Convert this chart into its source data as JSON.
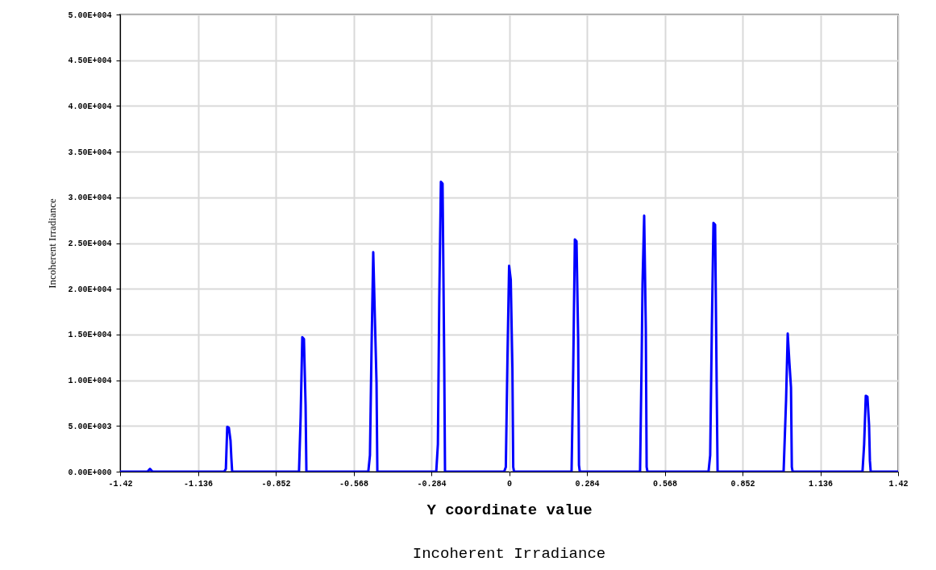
{
  "chart_data": {
    "type": "line",
    "title": "Incoherent Irradiance",
    "xlabel": "Y coordinate value",
    "ylabel": "Incoherent Irradiance",
    "xlim": [
      -1.42,
      1.42
    ],
    "xticks": [
      -1.42,
      -1.136,
      -0.852,
      -0.568,
      -0.284,
      0,
      0.284,
      0.568,
      0.852,
      1.136,
      1.42
    ],
    "ylim": [
      0,
      50000
    ],
    "yticks": [
      {
        "value": 0,
        "label": "0.00E+000"
      },
      {
        "value": 5000,
        "label": "5.00E+003"
      },
      {
        "value": 10000,
        "label": "1.00E+004"
      },
      {
        "value": 15000,
        "label": "1.50E+004"
      },
      {
        "value": 20000,
        "label": "2.00E+004"
      },
      {
        "value": 25000,
        "label": "2.50E+004"
      },
      {
        "value": 30000,
        "label": "3.00E+004"
      },
      {
        "value": 35000,
        "label": "3.50E+004"
      },
      {
        "value": 40000,
        "label": "4.00E+004"
      },
      {
        "value": 45000,
        "label": "4.50E+004"
      },
      {
        "value": 50000,
        "label": "5.00E+004"
      }
    ],
    "grid": true,
    "series": [
      {
        "color": "#0000ff",
        "x": [
          -1.42,
          -1.32,
          -1.311,
          -1.302,
          -1.04,
          -1.034,
          -1.029,
          -1.023,
          -1.017,
          -1.014,
          -1.011,
          -0.767,
          -0.761,
          -0.755,
          -0.749,
          -0.743,
          -0.74,
          -0.514,
          -0.508,
          -0.502,
          -0.496,
          -0.49,
          -0.484,
          -0.481,
          -0.266,
          -0.26,
          -0.255,
          -0.249,
          -0.243,
          -0.237,
          -0.234,
          -0.018,
          -0.012,
          -0.006,
          0,
          0.006,
          0.012,
          0.015,
          0.018,
          0.228,
          0.234,
          0.24,
          0.246,
          0.252,
          0.255,
          0.258,
          0.478,
          0.484,
          0.487,
          0.493,
          0.499,
          0.502,
          0.505,
          0.728,
          0.734,
          0.74,
          0.746,
          0.752,
          0.758,
          0.761,
          1.002,
          1.011,
          1.017,
          1.023,
          1.029,
          1.032,
          1.035,
          1.29,
          1.296,
          1.302,
          1.308,
          1.314,
          1.317,
          1.32,
          1.42
        ],
        "values": [
          0,
          0,
          300,
          0,
          0,
          300,
          4900,
          4800,
          3400,
          1500,
          0,
          0,
          6000,
          14700,
          14500,
          7300,
          0,
          0,
          1800,
          13800,
          24000,
          16800,
          9700,
          0,
          0,
          3000,
          18800,
          31700,
          31500,
          12500,
          0,
          0,
          500,
          12500,
          22500,
          21000,
          11300,
          500,
          0,
          0,
          11300,
          25400,
          25200,
          14600,
          700,
          0,
          0,
          12700,
          20500,
          28000,
          15700,
          500,
          0,
          0,
          1800,
          15600,
          27200,
          27000,
          8500,
          0,
          0,
          7800,
          15100,
          12000,
          9200,
          500,
          0,
          0,
          3000,
          8300,
          8200,
          5100,
          1200,
          0,
          0
        ]
      }
    ]
  }
}
